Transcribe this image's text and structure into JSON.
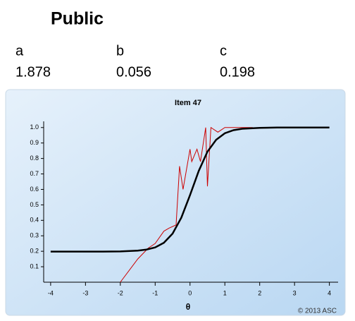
{
  "header": {
    "title": "Public"
  },
  "parameters": {
    "names": [
      "a",
      "b",
      "c"
    ],
    "values": [
      1.878,
      0.056,
      0.198
    ]
  },
  "chart_data": {
    "type": "line",
    "title": "Item 47",
    "x_label": "θ",
    "footer": "© 2013 ASC",
    "xlim": [
      -4.2,
      4.25
    ],
    "ylim": [
      0,
      1.04
    ],
    "xticks": [
      -4,
      -3,
      -2,
      -1,
      0,
      1,
      2,
      3,
      4
    ],
    "yticks": [
      0.1,
      0.2,
      0.3,
      0.4,
      0.5,
      0.6,
      0.7,
      0.8,
      0.9,
      {
        "value": 1,
        "label": "1.0"
      }
    ],
    "series": [
      {
        "color": "#cc0000",
        "x": [
          -2,
          -1.5,
          -1.2,
          -1,
          -0.75,
          -0.6,
          -0.4,
          -0.3,
          -0.2,
          0,
          0.05,
          0.2,
          0.3,
          0.45,
          0.5,
          0.6,
          0.8,
          1.0,
          1.5,
          1.8
        ],
        "values": [
          0,
          0.15,
          0.22,
          0.25,
          0.33,
          0.35,
          0.37,
          0.75,
          0.6,
          0.86,
          0.78,
          0.86,
          0.78,
          1.0,
          0.62,
          1.0,
          0.97,
          1.0,
          1.0,
          1.0
        ]
      },
      {
        "color": "#000000",
        "x": [
          -4,
          -3.5,
          -3,
          -2.5,
          -2,
          -1.5,
          -1.25,
          -1,
          -0.75,
          -0.5,
          -0.25,
          0,
          0.25,
          0.5,
          0.75,
          1,
          1.25,
          1.5,
          2,
          2.5,
          3,
          3.5,
          4
        ],
        "values": [
          0.198,
          0.198,
          0.198,
          0.198,
          0.199,
          0.204,
          0.211,
          0.225,
          0.255,
          0.314,
          0.417,
          0.563,
          0.719,
          0.844,
          0.921,
          0.963,
          0.983,
          0.992,
          0.998,
          1.0,
          1.0,
          1.0,
          1.0
        ]
      }
    ]
  }
}
